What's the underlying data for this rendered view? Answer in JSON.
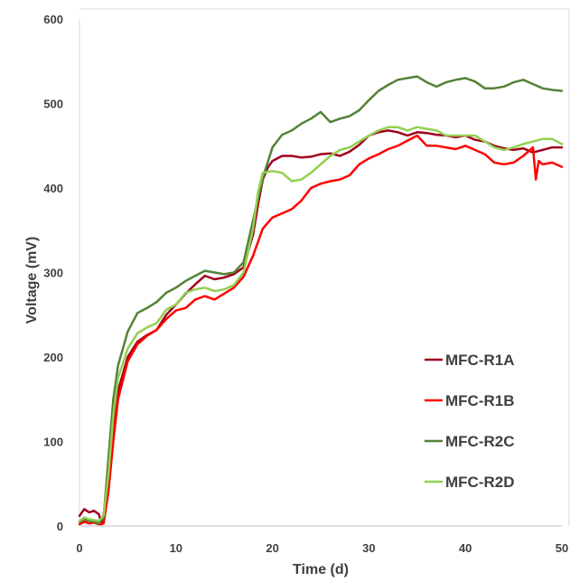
{
  "chart_data": {
    "type": "line",
    "title": "",
    "xlabel": "Time (d)",
    "ylabel": "Voltage (mV)",
    "xlim": [
      0,
      50
    ],
    "ylim": [
      0,
      600
    ],
    "xticks": [
      0,
      10,
      20,
      30,
      40,
      50
    ],
    "xtick_labels": [
      "0",
      "10",
      "20",
      "30",
      "40",
      "50"
    ],
    "yticks": [
      0,
      100,
      200,
      300,
      400,
      500,
      600
    ],
    "ytick_labels": [
      "0",
      "100",
      "200",
      "300",
      "400",
      "500",
      "600"
    ],
    "grid": false,
    "legend_position": "right",
    "series": [
      {
        "name": "MFC-R1A",
        "color": "#a0001e",
        "points": [
          [
            0,
            12
          ],
          [
            0.5,
            20
          ],
          [
            1,
            16
          ],
          [
            1.5,
            18
          ],
          [
            2,
            14
          ],
          [
            2.3,
            2
          ],
          [
            2.6,
            20
          ],
          [
            3,
            60
          ],
          [
            3.5,
            120
          ],
          [
            4,
            160
          ],
          [
            5,
            200
          ],
          [
            6,
            218
          ],
          [
            7,
            226
          ],
          [
            8,
            232
          ],
          [
            9,
            250
          ],
          [
            10,
            262
          ],
          [
            11,
            275
          ],
          [
            12,
            286
          ],
          [
            13,
            296
          ],
          [
            14,
            292
          ],
          [
            15,
            294
          ],
          [
            16,
            298
          ],
          [
            17,
            306
          ],
          [
            18,
            345
          ],
          [
            18.5,
            380
          ],
          [
            19,
            410
          ],
          [
            19.5,
            424
          ],
          [
            20,
            432
          ],
          [
            21,
            438
          ],
          [
            22,
            438
          ],
          [
            23,
            436
          ],
          [
            24,
            437
          ],
          [
            25,
            440
          ],
          [
            26,
            441
          ],
          [
            27,
            438
          ],
          [
            28,
            443
          ],
          [
            29,
            451
          ],
          [
            30,
            462
          ],
          [
            31,
            466
          ],
          [
            32,
            468
          ],
          [
            33,
            466
          ],
          [
            34,
            462
          ],
          [
            35,
            466
          ],
          [
            36,
            465
          ],
          [
            37,
            463
          ],
          [
            38,
            462
          ],
          [
            39,
            460
          ],
          [
            40,
            462
          ],
          [
            41,
            457
          ],
          [
            42,
            455
          ],
          [
            43,
            450
          ],
          [
            44,
            447
          ],
          [
            45,
            445
          ],
          [
            46,
            447
          ],
          [
            47,
            442
          ],
          [
            48,
            445
          ],
          [
            49,
            448
          ],
          [
            50,
            448
          ]
        ]
      },
      {
        "name": "MFC-R1B",
        "color": "#ff0000",
        "points": [
          [
            0,
            2
          ],
          [
            0.5,
            5
          ],
          [
            1,
            3
          ],
          [
            1.5,
            4
          ],
          [
            2,
            2
          ],
          [
            2.5,
            3
          ],
          [
            3,
            40
          ],
          [
            3.5,
            100
          ],
          [
            4,
            150
          ],
          [
            5,
            195
          ],
          [
            6,
            215
          ],
          [
            7,
            225
          ],
          [
            8,
            232
          ],
          [
            9,
            245
          ],
          [
            10,
            255
          ],
          [
            11,
            258
          ],
          [
            12,
            268
          ],
          [
            13,
            272
          ],
          [
            14,
            268
          ],
          [
            15,
            275
          ],
          [
            16,
            282
          ],
          [
            17,
            295
          ],
          [
            18,
            320
          ],
          [
            19,
            352
          ],
          [
            20,
            365
          ],
          [
            21,
            370
          ],
          [
            22,
            375
          ],
          [
            23,
            385
          ],
          [
            24,
            400
          ],
          [
            25,
            405
          ],
          [
            26,
            408
          ],
          [
            27,
            410
          ],
          [
            28,
            415
          ],
          [
            29,
            428
          ],
          [
            30,
            435
          ],
          [
            31,
            440
          ],
          [
            32,
            446
          ],
          [
            33,
            450
          ],
          [
            34,
            456
          ],
          [
            35,
            462
          ],
          [
            36,
            450
          ],
          [
            37,
            450
          ],
          [
            38,
            448
          ],
          [
            39,
            446
          ],
          [
            40,
            450
          ],
          [
            41,
            445
          ],
          [
            42,
            440
          ],
          [
            43,
            430
          ],
          [
            44,
            428
          ],
          [
            45,
            430
          ],
          [
            46,
            438
          ],
          [
            47,
            448
          ],
          [
            47.3,
            410
          ],
          [
            47.6,
            432
          ],
          [
            48,
            428
          ],
          [
            49,
            430
          ],
          [
            50,
            425
          ]
        ]
      },
      {
        "name": "MFC-R2C",
        "color": "#548235",
        "points": [
          [
            0,
            5
          ],
          [
            0.5,
            8
          ],
          [
            1,
            6
          ],
          [
            1.5,
            5
          ],
          [
            2,
            3
          ],
          [
            2.5,
            10
          ],
          [
            3,
            80
          ],
          [
            3.5,
            150
          ],
          [
            4,
            190
          ],
          [
            5,
            230
          ],
          [
            6,
            252
          ],
          [
            7,
            258
          ],
          [
            8,
            265
          ],
          [
            9,
            276
          ],
          [
            10,
            282
          ],
          [
            11,
            290
          ],
          [
            12,
            296
          ],
          [
            13,
            302
          ],
          [
            14,
            300
          ],
          [
            15,
            298
          ],
          [
            16,
            300
          ],
          [
            17,
            312
          ],
          [
            18,
            362
          ],
          [
            19,
            412
          ],
          [
            20,
            448
          ],
          [
            21,
            463
          ],
          [
            22,
            468
          ],
          [
            23,
            476
          ],
          [
            24,
            482
          ],
          [
            25,
            490
          ],
          [
            26,
            478
          ],
          [
            27,
            482
          ],
          [
            28,
            485
          ],
          [
            29,
            492
          ],
          [
            30,
            504
          ],
          [
            31,
            515
          ],
          [
            32,
            522
          ],
          [
            33,
            528
          ],
          [
            34,
            530
          ],
          [
            35,
            532
          ],
          [
            36,
            525
          ],
          [
            37,
            520
          ],
          [
            38,
            525
          ],
          [
            39,
            528
          ],
          [
            40,
            530
          ],
          [
            41,
            526
          ],
          [
            42,
            518
          ],
          [
            43,
            518
          ],
          [
            44,
            520
          ],
          [
            45,
            525
          ],
          [
            46,
            528
          ],
          [
            47,
            523
          ],
          [
            48,
            518
          ],
          [
            49,
            516
          ],
          [
            50,
            515
          ]
        ]
      },
      {
        "name": "MFC-R2D",
        "color": "#92d050",
        "points": [
          [
            0,
            6
          ],
          [
            0.5,
            10
          ],
          [
            1,
            8
          ],
          [
            1.5,
            7
          ],
          [
            2,
            6
          ],
          [
            2.5,
            12
          ],
          [
            3,
            60
          ],
          [
            3.5,
            130
          ],
          [
            4,
            175
          ],
          [
            5,
            210
          ],
          [
            6,
            228
          ],
          [
            7,
            235
          ],
          [
            8,
            240
          ],
          [
            9,
            256
          ],
          [
            10,
            262
          ],
          [
            11,
            276
          ],
          [
            12,
            280
          ],
          [
            13,
            282
          ],
          [
            14,
            278
          ],
          [
            15,
            280
          ],
          [
            16,
            285
          ],
          [
            17,
            300
          ],
          [
            18,
            352
          ],
          [
            18.5,
            395
          ],
          [
            19,
            418
          ],
          [
            20,
            420
          ],
          [
            21,
            418
          ],
          [
            22,
            408
          ],
          [
            23,
            410
          ],
          [
            24,
            418
          ],
          [
            25,
            428
          ],
          [
            26,
            438
          ],
          [
            27,
            445
          ],
          [
            28,
            448
          ],
          [
            29,
            455
          ],
          [
            30,
            462
          ],
          [
            31,
            468
          ],
          [
            32,
            472
          ],
          [
            33,
            472
          ],
          [
            34,
            468
          ],
          [
            35,
            472
          ],
          [
            36,
            470
          ],
          [
            37,
            468
          ],
          [
            38,
            462
          ],
          [
            39,
            462
          ],
          [
            40,
            462
          ],
          [
            41,
            462
          ],
          [
            42,
            455
          ],
          [
            43,
            448
          ],
          [
            44,
            445
          ],
          [
            45,
            448
          ],
          [
            46,
            452
          ],
          [
            47,
            455
          ],
          [
            48,
            458
          ],
          [
            49,
            458
          ],
          [
            50,
            452
          ]
        ]
      }
    ]
  }
}
